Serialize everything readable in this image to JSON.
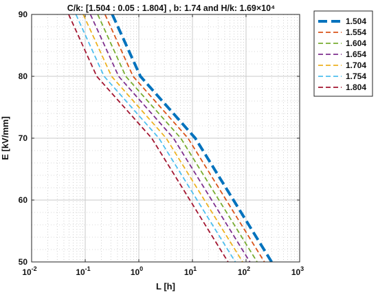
{
  "chart_data": {
    "type": "line",
    "title": "C/k: [1.504 : 0.05 : 1.804] , b: 1.74 and H/k: 1.69×10⁴",
    "xlabel": "L [h]",
    "ylabel": "E [kV/mm]",
    "x_scale": "log",
    "xlim": [
      0.01,
      1000
    ],
    "ylim": [
      50,
      90
    ],
    "x_ticks": [
      0.01,
      0.1,
      1,
      10,
      100,
      1000
    ],
    "x_tick_labels": [
      {
        "base": "10",
        "exp": "-2"
      },
      {
        "base": "10",
        "exp": "-1"
      },
      {
        "base": "10",
        "exp": "0"
      },
      {
        "base": "10",
        "exp": "1"
      },
      {
        "base": "10",
        "exp": "2"
      },
      {
        "base": "10",
        "exp": "3"
      }
    ],
    "y_ticks": [
      50,
      60,
      70,
      80,
      90
    ],
    "y_tick_labels": [
      "50",
      "60",
      "70",
      "80",
      "90"
    ],
    "grid": true,
    "minor_grid": true,
    "legend_position": "outside-top-right",
    "series": [
      {
        "name": "1.504",
        "color": "#0072BD",
        "width": 4.0,
        "dash": "13,6",
        "x": [
          0.32,
          1.07,
          11.3,
          300
        ],
        "y": [
          90,
          80,
          70,
          50
        ]
      },
      {
        "name": "1.554",
        "color": "#D95319",
        "width": 1.8,
        "dash": "7,4",
        "x": [
          0.234,
          0.78,
          8.27,
          220
        ],
        "y": [
          90,
          80,
          70,
          50
        ]
      },
      {
        "name": "1.604",
        "color": "#77AC30",
        "width": 1.8,
        "dash": "7,4",
        "x": [
          0.171,
          0.57,
          6.06,
          161
        ],
        "y": [
          90,
          80,
          70,
          50
        ]
      },
      {
        "name": "1.654",
        "color": "#7E2F8E",
        "width": 1.8,
        "dash": "7,4",
        "x": [
          0.125,
          0.42,
          4.43,
          118
        ],
        "y": [
          90,
          80,
          70,
          50
        ]
      },
      {
        "name": "1.704",
        "color": "#EDB120",
        "width": 1.8,
        "dash": "7,4",
        "x": [
          0.0918,
          0.31,
          3.24,
          86.3
        ],
        "y": [
          90,
          80,
          70,
          50
        ]
      },
      {
        "name": "1.754",
        "color": "#4DBEEE",
        "width": 1.8,
        "dash": "7,4",
        "x": [
          0.0671,
          0.225,
          2.37,
          63.1
        ],
        "y": [
          90,
          80,
          70,
          50
        ]
      },
      {
        "name": "1.804",
        "color": "#A2142F",
        "width": 1.8,
        "dash": "7,4",
        "x": [
          0.0491,
          0.164,
          1.74,
          46.2
        ],
        "y": [
          90,
          80,
          70,
          50
        ]
      }
    ]
  }
}
